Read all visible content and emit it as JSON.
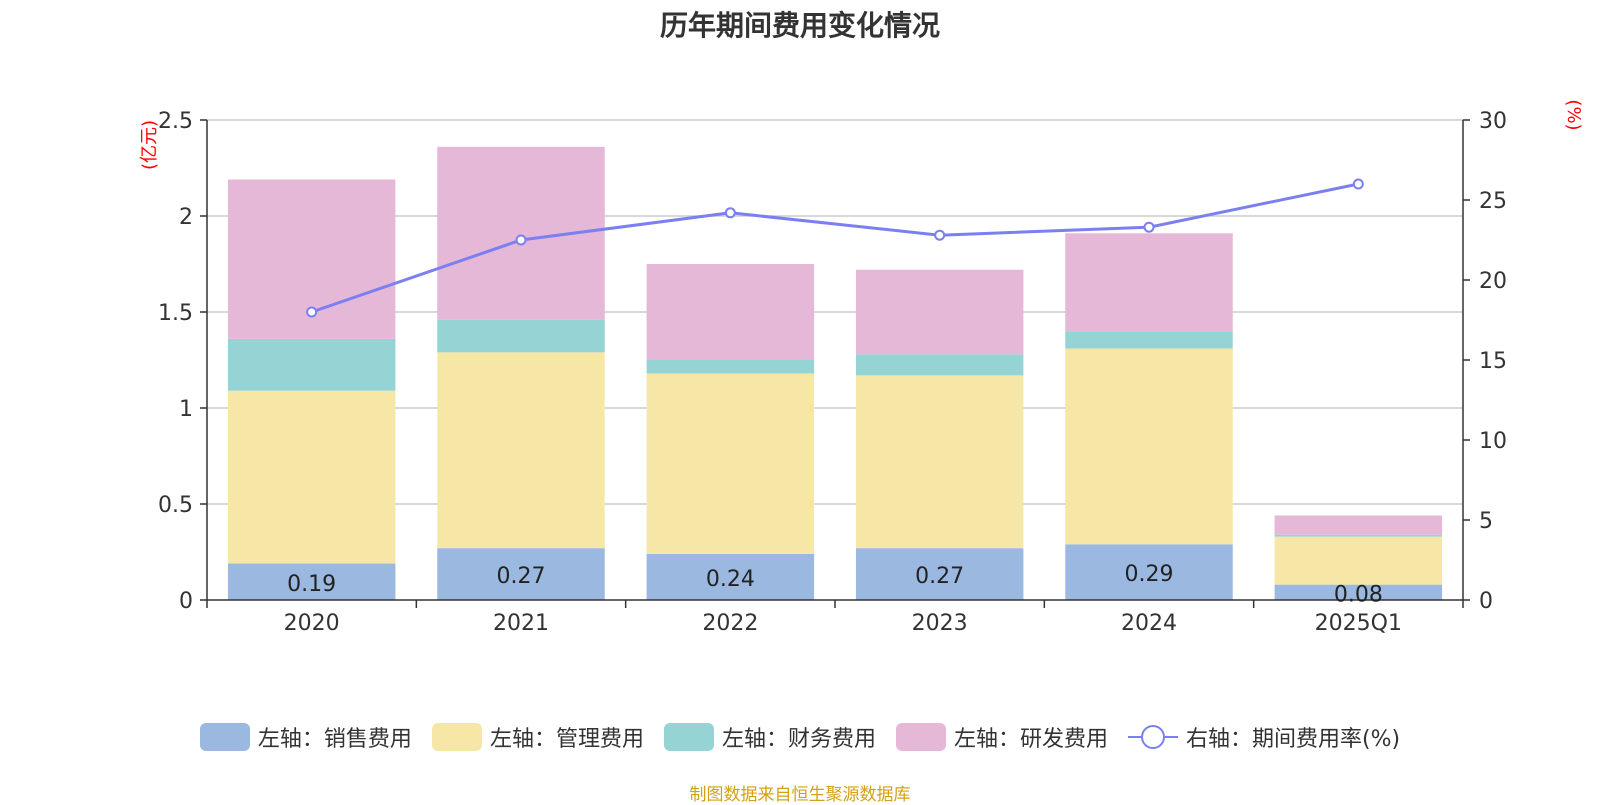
{
  "title": "历年期间费用变化情况",
  "footer": "制图数据来自恒生聚源数据库",
  "chart_data": {
    "type": "bar",
    "stacked": true,
    "categories": [
      "2020",
      "2021",
      "2022",
      "2023",
      "2024",
      "2025Q1"
    ],
    "left_axis": {
      "unit": "(亿元)",
      "ylim": [
        0,
        2.5
      ],
      "ticks": [
        "0",
        "0.5",
        "1",
        "1.5",
        "2",
        "2.5"
      ]
    },
    "right_axis": {
      "unit": "(%)",
      "ylim": [
        0,
        30
      ],
      "ticks": [
        "0",
        "5",
        "10",
        "15",
        "20",
        "25",
        "30"
      ]
    },
    "grid": true,
    "legend_position": "bottom",
    "series": [
      {
        "name": "左轴：销售费用",
        "type": "bar",
        "color": "#9bb8e1",
        "values": [
          0.19,
          0.27,
          0.24,
          0.27,
          0.29,
          0.08
        ],
        "labels": [
          "0.19",
          "0.27",
          "0.24",
          "0.27",
          "0.29",
          "0.08"
        ]
      },
      {
        "name": "左轴：管理费用",
        "type": "bar",
        "color": "#f7e7a6",
        "values": [
          0.9,
          1.02,
          0.94,
          0.9,
          1.02,
          0.25
        ]
      },
      {
        "name": "左轴：财务费用",
        "type": "bar",
        "color": "#96d3d4",
        "values": [
          0.27,
          0.17,
          0.07,
          0.11,
          0.09,
          0.01
        ]
      },
      {
        "name": "左轴：研发费用",
        "type": "bar",
        "color": "#e6b8d8",
        "values": [
          0.83,
          0.9,
          0.5,
          0.44,
          0.51,
          0.1
        ]
      },
      {
        "name": "右轴：期间费用率(%)",
        "type": "line",
        "axis": "right",
        "color": "#7b7ff0",
        "values": [
          18.0,
          22.5,
          24.2,
          22.8,
          23.3,
          26.0
        ]
      }
    ]
  }
}
